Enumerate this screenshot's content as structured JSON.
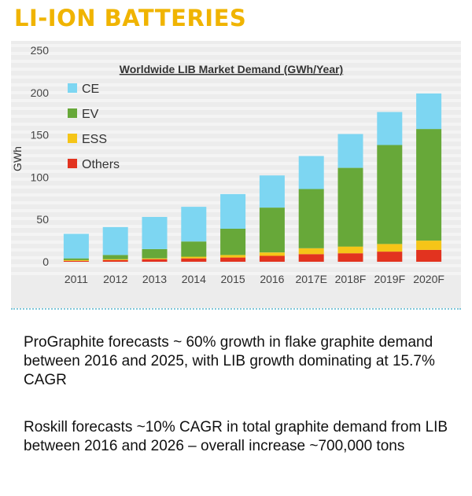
{
  "page": {
    "title": "LI-ION BATTERIES",
    "title_color": "#f0b400",
    "paragraphs": [
      "ProGraphite forecasts ~ 60% growth in flake graphite demand between 2016 and 2025, with LIB growth dominating at 15.7% CAGR",
      "Roskill forecasts ~10% CAGR in total graphite demand from LIB between 2016 and 2026 – overall increase ~700,000 tons"
    ]
  },
  "chart_data": {
    "type": "bar",
    "stacked": true,
    "title": "Worldwide LIB Market Demand (GWh/Year)",
    "xlabel": "",
    "ylabel": "GWh",
    "ylim": [
      0,
      250
    ],
    "yticks": [
      0,
      50,
      100,
      150,
      200,
      250
    ],
    "grid": false,
    "legend_position": "top-left",
    "categories": [
      "2011",
      "2012",
      "2013",
      "2014",
      "2015",
      "2016",
      "2017E",
      "2018F",
      "2019F",
      "2020F"
    ],
    "series": [
      {
        "name": "Others",
        "color": "#e2331f",
        "values": [
          1,
          2,
          3,
          4,
          5,
          7,
          9,
          10,
          12,
          14
        ]
      },
      {
        "name": "ESS",
        "color": "#f5c518",
        "values": [
          1,
          1,
          1,
          2,
          3,
          4,
          7,
          8,
          9,
          11
        ]
      },
      {
        "name": "EV",
        "color": "#67a839",
        "values": [
          2,
          5,
          11,
          18,
          31,
          53,
          70,
          93,
          117,
          132
        ]
      },
      {
        "name": "CE",
        "color": "#7dd6f2",
        "values": [
          29,
          33,
          38,
          41,
          41,
          38,
          39,
          40,
          39,
          42
        ]
      }
    ],
    "legend_order": [
      "CE",
      "EV",
      "ESS",
      "Others"
    ]
  }
}
